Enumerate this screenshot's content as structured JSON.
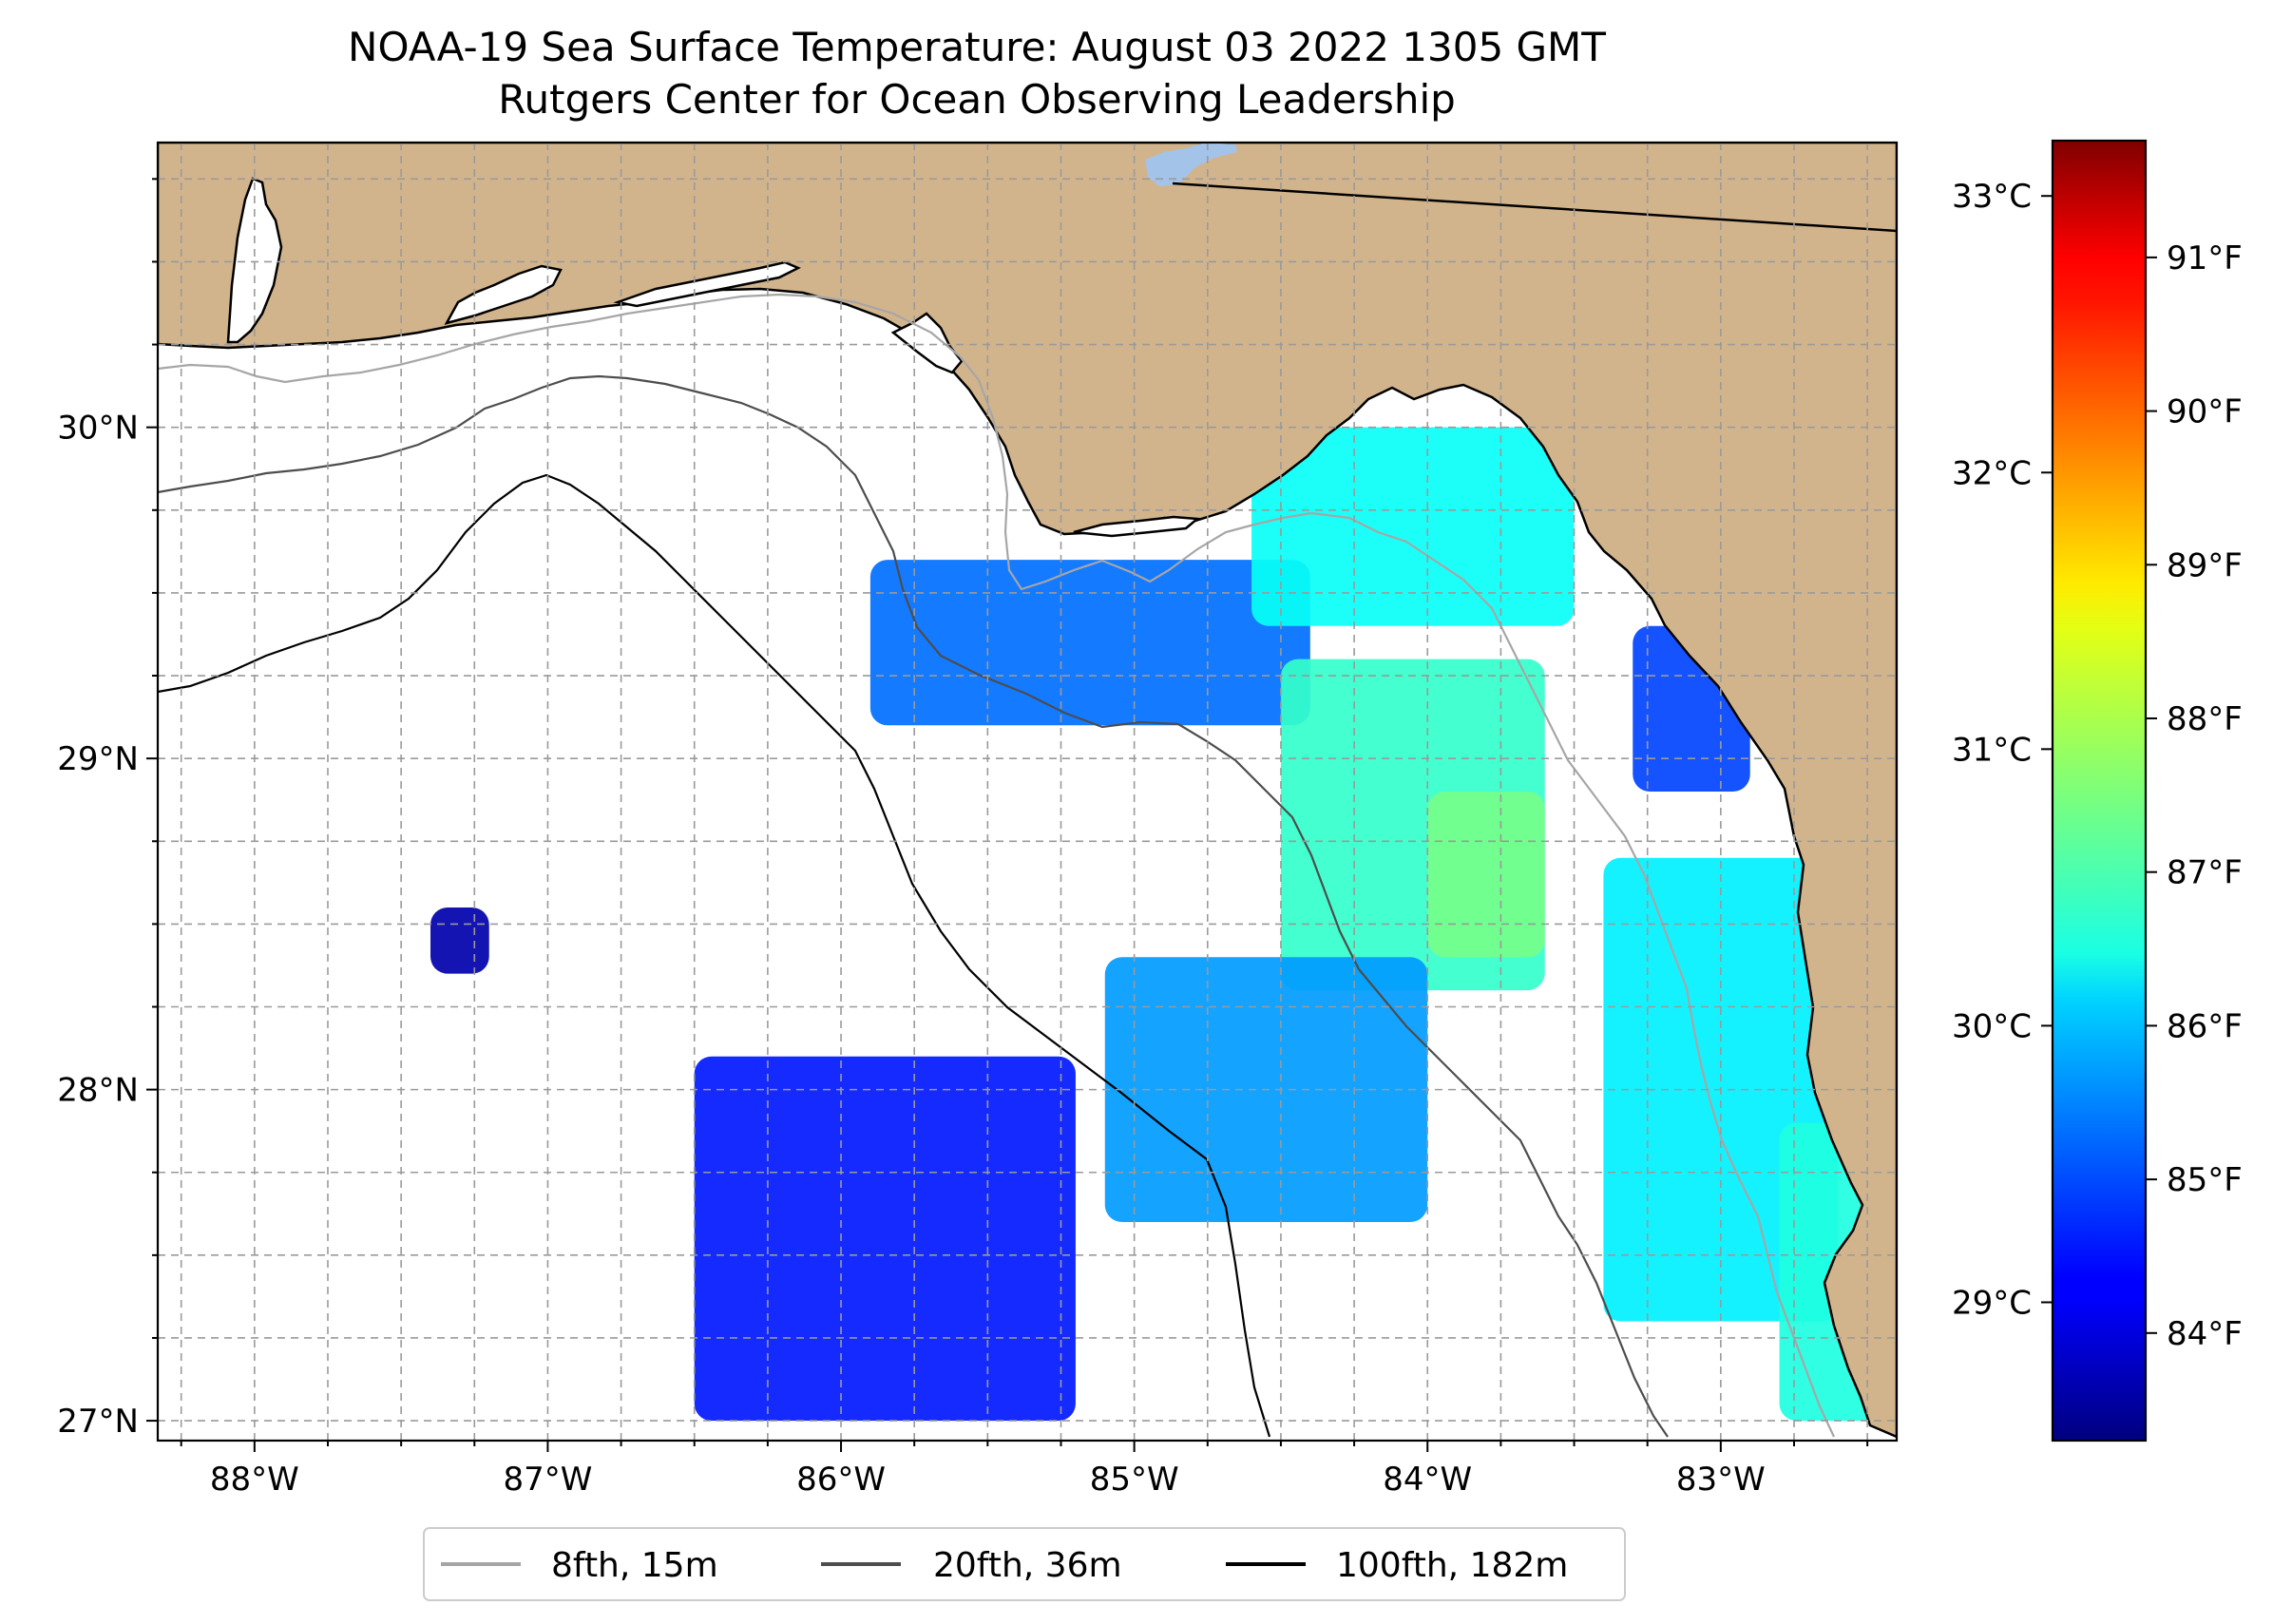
{
  "chart_data": {
    "type": "heatmap",
    "title": "NOAA-19 Sea Surface Temperature: August 03 2022 1305 GMT",
    "subtitle": "Rutgers Center for Ocean Observing Leadership",
    "xlim": [
      -88.33,
      -82.4
    ],
    "ylim": [
      26.94,
      30.86
    ],
    "x_ticks": [
      {
        "value": -88,
        "label": "88°W"
      },
      {
        "value": -87,
        "label": "87°W"
      },
      {
        "value": -86,
        "label": "86°W"
      },
      {
        "value": -85,
        "label": "85°W"
      },
      {
        "value": -84,
        "label": "84°W"
      },
      {
        "value": -83,
        "label": "83°W"
      }
    ],
    "y_ticks": [
      {
        "value": 27,
        "label": "27°N"
      },
      {
        "value": 28,
        "label": "28°N"
      },
      {
        "value": 29,
        "label": "29°N"
      },
      {
        "value": 30,
        "label": "30°N"
      }
    ],
    "grid": true,
    "grid_step_deg": 0.25,
    "colorbar": {
      "colormap": "jet",
      "range_c": [
        28.5,
        33.2
      ],
      "celsius_ticks": [
        {
          "value": 29,
          "label": "29°C"
        },
        {
          "value": 30,
          "label": "30°C"
        },
        {
          "value": 31,
          "label": "31°C"
        },
        {
          "value": 32,
          "label": "32°C"
        },
        {
          "value": 33,
          "label": "33°C"
        }
      ],
      "fahrenheit_ticks": [
        {
          "value": 84,
          "label": "84°F"
        },
        {
          "value": 85,
          "label": "85°F"
        },
        {
          "value": 86,
          "label": "86°F"
        },
        {
          "value": 87,
          "label": "87°F"
        },
        {
          "value": 88,
          "label": "88°F"
        },
        {
          "value": 89,
          "label": "89°F"
        },
        {
          "value": 90,
          "label": "90°F"
        },
        {
          "value": 91,
          "label": "91°F"
        }
      ]
    },
    "legend": {
      "placement": "bottom-center",
      "entries": [
        {
          "label": "8fth, 15m",
          "color": "#a6a6a6"
        },
        {
          "label": "20fth, 36m",
          "color": "#4d4d4d"
        },
        {
          "label": "100fth, 182m",
          "color": "#000000"
        }
      ]
    },
    "colors": {
      "land": "#d2b48c",
      "water_no_data": "#ffffff",
      "inland_water": "#a4c3e8",
      "sst_low": "#00007f",
      "sst_mid": "#1e64ff",
      "sst_high": "#40ffb7"
    },
    "sst_regions": [
      {
        "lon": [
          -85.9,
          -84.4
        ],
        "lat": [
          29.1,
          29.6
        ],
        "c": 29.6
      },
      {
        "lon": [
          -84.6,
          -83.5
        ],
        "lat": [
          29.4,
          30.0
        ],
        "c": 30.3
      },
      {
        "lon": [
          -84.5,
          -83.6
        ],
        "lat": [
          28.3,
          29.3
        ],
        "c": 30.5
      },
      {
        "lon": [
          -84.0,
          -83.6
        ],
        "lat": [
          28.4,
          28.9
        ],
        "c": 30.8
      },
      {
        "lon": [
          -86.5,
          -85.2
        ],
        "lat": [
          27.0,
          28.1
        ],
        "c": 29.2
      },
      {
        "lon": [
          -85.1,
          -84.0
        ],
        "lat": [
          27.6,
          28.4
        ],
        "c": 29.8
      },
      {
        "lon": [
          -83.4,
          -82.6
        ],
        "lat": [
          27.3,
          28.7
        ],
        "c": 30.2
      },
      {
        "lon": [
          -82.8,
          -82.45
        ],
        "lat": [
          27.0,
          27.9
        ],
        "c": 30.4
      },
      {
        "lon": [
          -83.3,
          -82.9
        ],
        "lat": [
          28.9,
          29.4
        ],
        "c": 29.4
      },
      {
        "lon": [
          -87.4,
          -87.2
        ],
        "lat": [
          28.35,
          28.55
        ],
        "c": 28.7
      }
    ]
  }
}
